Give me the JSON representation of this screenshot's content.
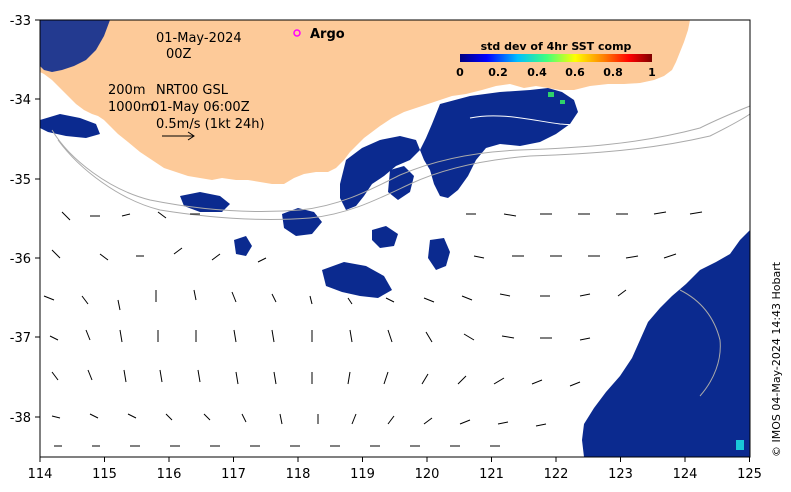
{
  "map": {
    "date_line1": "01-May-2024",
    "date_line2": "00Z",
    "contour_200m": "200m",
    "contour_1000m": "1000m",
    "product_label": "NRT00 GSL",
    "product_time": "01-May 06:00Z",
    "scale_label": "0.5m/s (1kt 24h)",
    "argo_label": "Argo",
    "credit": "© IMOS 04-May-2024 14:43 Hobart",
    "colorbar": {
      "title": "std dev of 4hr SST comp",
      "ticks": [
        "0",
        "0.2",
        "0.4",
        "0.6",
        "0.8",
        "1"
      ],
      "colors": [
        "#00007f",
        "#0000ff",
        "#00bfff",
        "#3fff7f",
        "#ffff00",
        "#ff7f00",
        "#ff0000",
        "#7f0000"
      ]
    },
    "x_axis": {
      "ticks": [
        "114",
        "115",
        "116",
        "117",
        "118",
        "119",
        "120",
        "121",
        "122",
        "123",
        "124",
        "125"
      ]
    },
    "y_axis": {
      "ticks": [
        "-33",
        "-34",
        "-35",
        "-36",
        "-37",
        "-38"
      ]
    },
    "colors": {
      "land": "#fdca99",
      "sst_patch": "#0b2a8f",
      "argo_marker": "#ff00ff",
      "isobath": "#aaaaaa"
    }
  }
}
